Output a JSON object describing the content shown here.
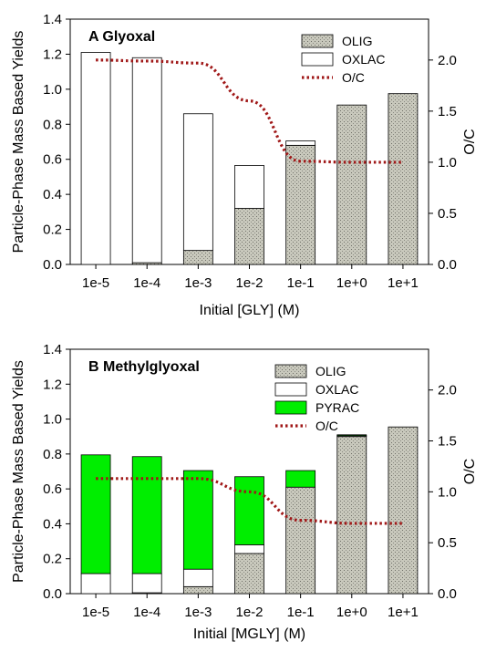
{
  "chart_data": [
    {
      "type": "bar",
      "panel": "A",
      "title": "Glyoxal",
      "xlabel": "Initial [GLY] (M)",
      "ylabel": "Particle-Phase Mass Based Yields",
      "y2label": "O/C",
      "ylim": [
        0,
        1.4
      ],
      "y2lim": [
        0,
        2.4
      ],
      "yticks": [
        "0.0",
        "0.2",
        "0.4",
        "0.6",
        "0.8",
        "1.0",
        "1.2",
        "1.4"
      ],
      "y2ticks": [
        "0.0",
        "0.5",
        "1.0",
        "1.5",
        "2.0"
      ],
      "categories": [
        "1e-5",
        "1e-4",
        "1e-3",
        "1e-2",
        "1e-1",
        "1e+0",
        "1e+1"
      ],
      "stacked": true,
      "series": [
        {
          "name": "OLIG",
          "color": "#c8c8bc",
          "pattern": "dots",
          "values": [
            0.0,
            0.01,
            0.08,
            0.32,
            0.68,
            0.91,
            0.975
          ]
        },
        {
          "name": "OXLAC",
          "color": "#ffffff",
          "values": [
            1.21,
            1.17,
            0.78,
            0.245,
            0.025,
            0.0,
            0.0
          ]
        }
      ],
      "line_series": {
        "name": "O/C",
        "axis": "right",
        "color": "#a01818",
        "style": "dotted",
        "x": [
          "1e-5",
          "1e-4",
          "1e-3",
          "1e-2",
          "1e-1",
          "1e+0",
          "1e+1"
        ],
        "values": [
          2.0,
          1.99,
          1.97,
          1.6,
          1.01,
          1.0,
          1.0
        ]
      },
      "legend": {
        "placement": "top-right",
        "entries": [
          "OLIG",
          "OXLAC",
          "O/C"
        ]
      }
    },
    {
      "type": "bar",
      "panel": "B",
      "title": "Methylglyoxal",
      "xlabel": "Initial [MGLY] (M)",
      "ylabel": "Particle-Phase Mass Based Yields",
      "y2label": "O/C",
      "ylim": [
        0,
        1.4
      ],
      "y2lim": [
        0,
        2.4
      ],
      "yticks": [
        "0.0",
        "0.2",
        "0.4",
        "0.6",
        "0.8",
        "1.0",
        "1.2",
        "1.4"
      ],
      "y2ticks": [
        "0.0",
        "0.5",
        "1.0",
        "1.5",
        "2.0"
      ],
      "categories": [
        "1e-5",
        "1e-4",
        "1e-3",
        "1e-2",
        "1e-1",
        "1e+0",
        "1e+1"
      ],
      "stacked": true,
      "series": [
        {
          "name": "OLIG",
          "color": "#c8c8bc",
          "pattern": "dots",
          "values": [
            0.0,
            0.005,
            0.04,
            0.23,
            0.61,
            0.9,
            0.955
          ]
        },
        {
          "name": "OXLAC",
          "color": "#ffffff",
          "values": [
            0.115,
            0.11,
            0.1,
            0.05,
            0.0,
            0.005,
            0.0
          ]
        },
        {
          "name": "PYRAC",
          "color": "#00ee00",
          "values": [
            0.68,
            0.67,
            0.565,
            0.39,
            0.095,
            0.005,
            0.0
          ]
        }
      ],
      "line_series": {
        "name": "O/C",
        "axis": "right",
        "color": "#a01818",
        "style": "dotted",
        "x": [
          "1e-5",
          "1e-4",
          "1e-3",
          "1e-2",
          "1e-1",
          "1e+0",
          "1e+1"
        ],
        "values": [
          1.13,
          1.13,
          1.13,
          1.0,
          0.72,
          0.69,
          0.69
        ]
      },
      "legend": {
        "placement": "top-right",
        "entries": [
          "OLIG",
          "OXLAC",
          "PYRAC",
          "O/C"
        ]
      }
    }
  ]
}
